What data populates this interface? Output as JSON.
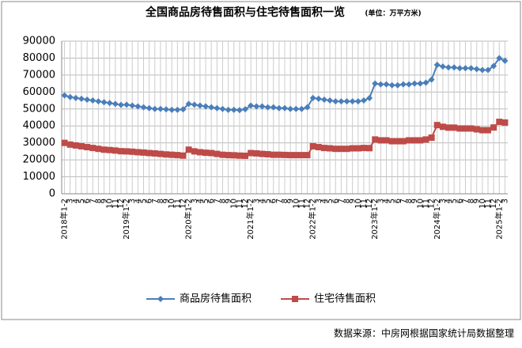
{
  "chart_data": {
    "type": "line",
    "title": "全国商品房待售面积与住宅待售面积一览",
    "subtitle": "(单位：万平方米)",
    "source": "数据来源：中房网根据国家统计局数据整理",
    "categories": [
      "2018年1-2",
      "3",
      "4",
      "5",
      "6",
      "7",
      "8",
      "9",
      "10",
      "11",
      "12",
      "2019年1-2",
      "3",
      "4",
      "5",
      "6",
      "7",
      "8",
      "9",
      "10",
      "11",
      "12",
      "2020年1-2",
      "3",
      "4",
      "5",
      "6",
      "7",
      "8",
      "9",
      "10",
      "11",
      "12",
      "2021年1-2",
      "3",
      "4",
      "5",
      "6",
      "7",
      "8",
      "9",
      "10",
      "11",
      "12",
      "2022年1-2",
      "3",
      "4",
      "5",
      "6",
      "7",
      "8",
      "9",
      "10",
      "11",
      "12",
      "2023年1-2",
      "3",
      "4",
      "5",
      "6",
      "7",
      "8",
      "9",
      "10",
      "11",
      "12",
      "2024年1-2",
      "3",
      "4",
      "5",
      "6",
      "7",
      "8",
      "9",
      "10",
      "11",
      "12",
      "2025年1-2",
      "3"
    ],
    "series": [
      {
        "name": "商品房待售面积",
        "color": "#4a7ebb",
        "marker": "diamond",
        "values": [
          58000,
          57000,
          56500,
          56000,
          55500,
          55000,
          54500,
          54000,
          53500,
          53000,
          52400,
          52500,
          52000,
          51500,
          51000,
          50500,
          50000,
          50000,
          49800,
          49500,
          49500,
          49800,
          53000,
          52500,
          52000,
          51500,
          51000,
          50500,
          50000,
          49500,
          49500,
          49300,
          49850,
          52000,
          51500,
          51500,
          51000,
          51000,
          50500,
          50500,
          50000,
          50000,
          50000,
          51000,
          56500,
          56000,
          55500,
          55000,
          54500,
          54500,
          54500,
          54500,
          54500,
          55000,
          56400,
          65000,
          64500,
          64500,
          64000,
          64000,
          64500,
          64500,
          65000,
          65000,
          65500,
          67300,
          76000,
          75000,
          74500,
          74500,
          74000,
          74000,
          74000,
          73500,
          73000,
          73000,
          75300,
          80000,
          78400
        ]
      },
      {
        "name": "住宅待售面积",
        "color": "#be4b48",
        "marker": "square",
        "values": [
          30000,
          29000,
          28500,
          28000,
          27500,
          27000,
          26500,
          26000,
          25800,
          25500,
          25100,
          25000,
          24800,
          24500,
          24300,
          24000,
          23800,
          23500,
          23200,
          23000,
          22800,
          22500,
          26000,
          25000,
          24500,
          24200,
          24000,
          23500,
          23000,
          22800,
          22700,
          22500,
          22400,
          24000,
          23800,
          23500,
          23300,
          23000,
          23000,
          22900,
          22800,
          22800,
          22800,
          22800,
          28000,
          27500,
          27000,
          26800,
          26500,
          26500,
          26500,
          26800,
          26800,
          27000,
          26900,
          32000,
          31500,
          31500,
          31000,
          31000,
          31000,
          31500,
          31500,
          31500,
          32000,
          33100,
          40500,
          39500,
          39000,
          39000,
          38500,
          38500,
          38500,
          38000,
          37500,
          37500,
          39100,
          42400,
          42000
        ]
      }
    ],
    "ylim": [
      0,
      90000
    ],
    "yticks": [
      0,
      10000,
      20000,
      30000,
      40000,
      50000,
      60000,
      70000,
      80000,
      90000
    ],
    "grid": true
  }
}
